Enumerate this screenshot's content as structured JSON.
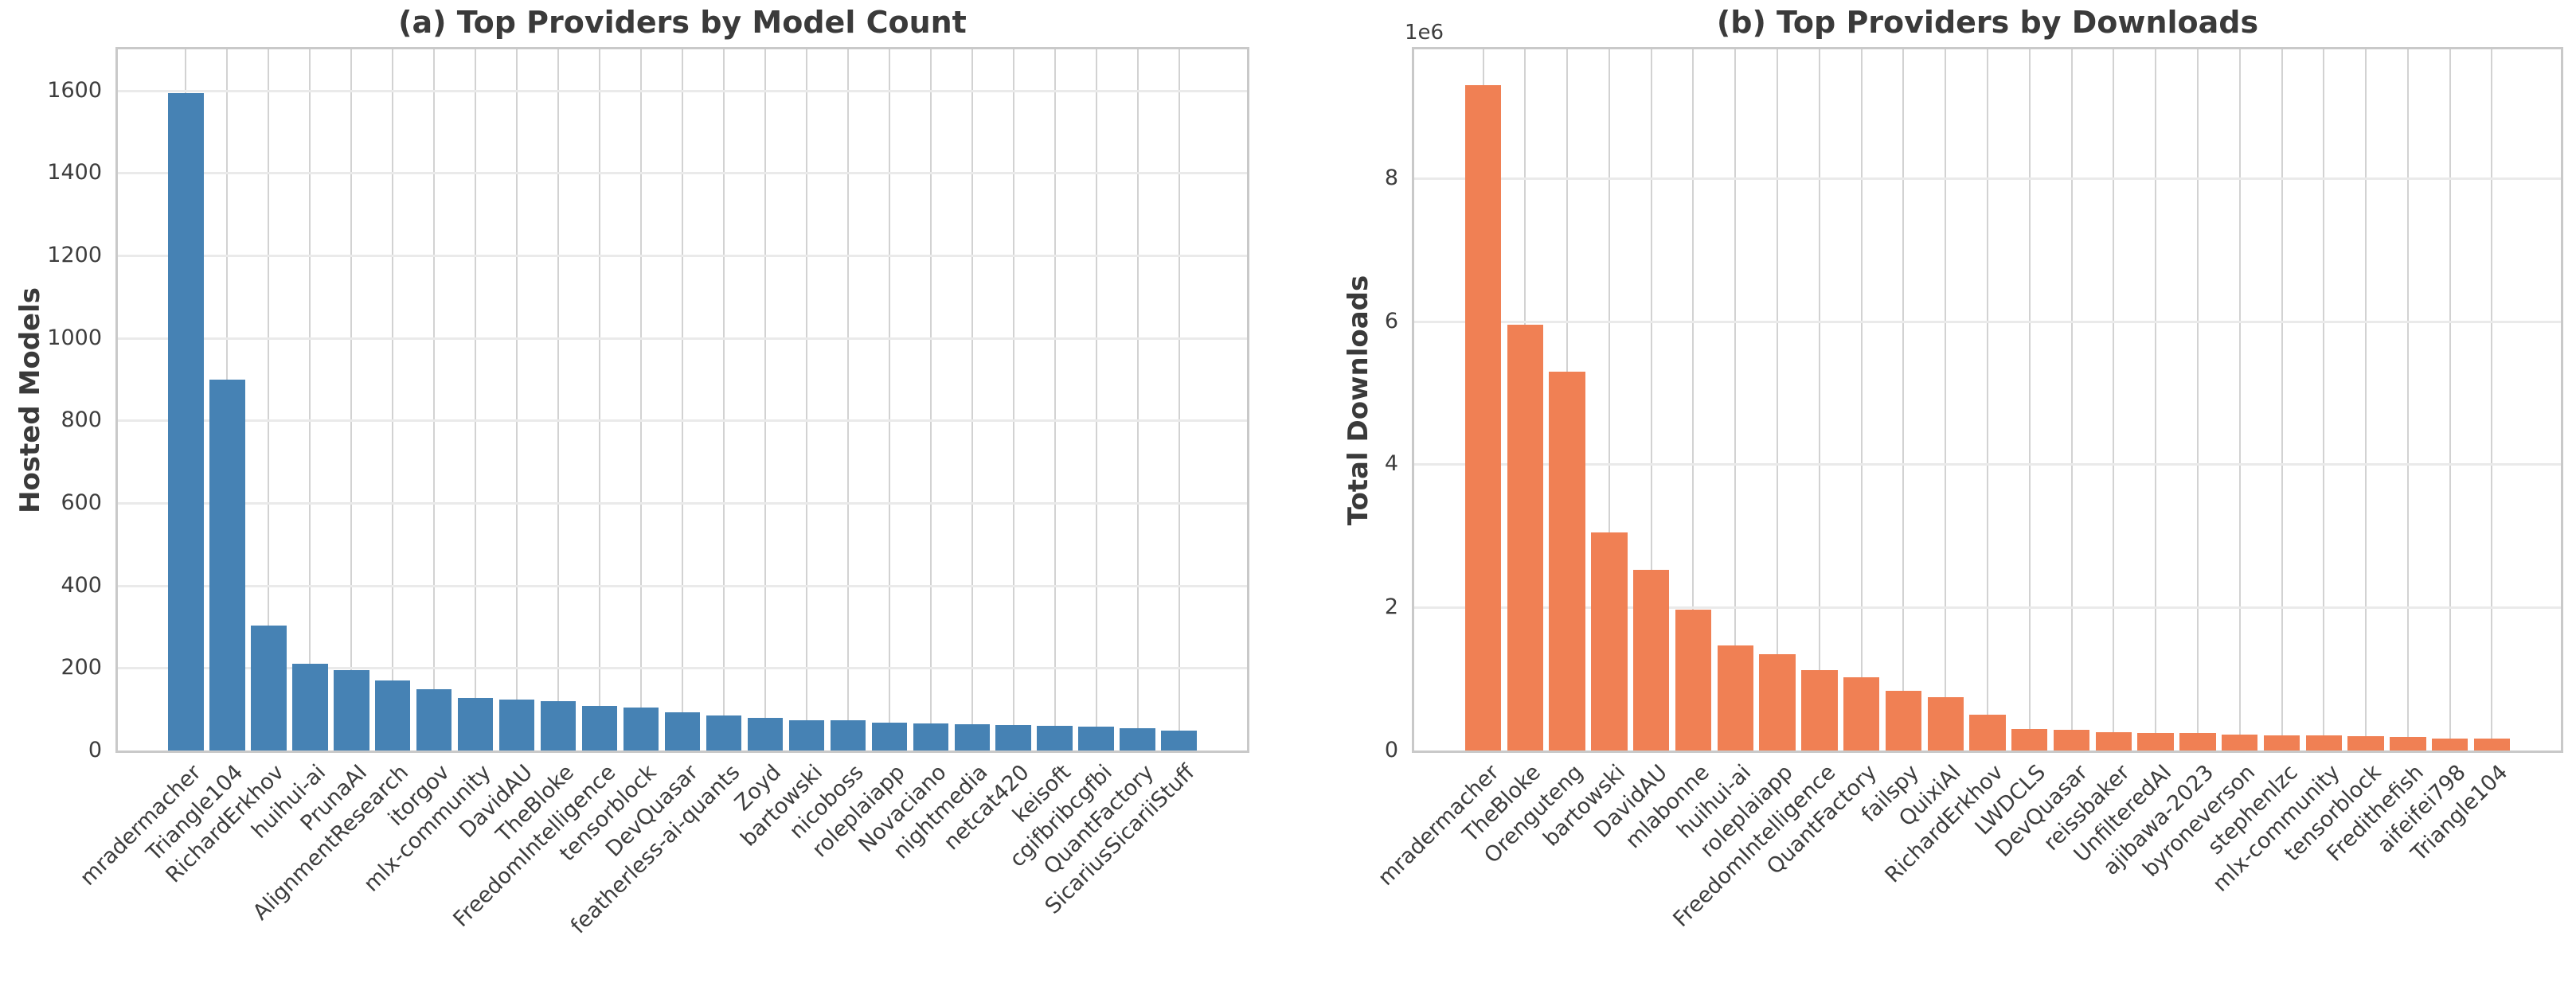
{
  "figure": {
    "background": "#ffffff",
    "text_color": "#3a3a3a",
    "grid_color_vertical": "#d2d2d2",
    "grid_color_horizontal": "#eaeaea"
  },
  "chart_data": [
    {
      "type": "bar",
      "title": "(a) Top Providers by Model Count",
      "xlabel": "",
      "ylabel": "Hosted Models",
      "bar_color": "#4682B4",
      "grid": true,
      "legend_position": "none",
      "ylim": [
        0,
        1700
      ],
      "yticks": [
        0,
        200,
        400,
        600,
        800,
        1000,
        1200,
        1400,
        1600
      ],
      "ytick_labels": [
        "0",
        "200",
        "400",
        "600",
        "800",
        "1000",
        "1200",
        "1400",
        "1600"
      ],
      "offset_label": "",
      "categories": [
        "mradermacher",
        "Triangle104",
        "RichardErkhov",
        "huihui-ai",
        "PrunaAI",
        "AlignmentResearch",
        "itorgov",
        "mlx-community",
        "DavidAU",
        "TheBloke",
        "FreedomIntelligence",
        "tensorblock",
        "DevQuasar",
        "featherless-ai-quants",
        "Zoyd",
        "bartowski",
        "nicoboss",
        "roleplaiapp",
        "Novaciano",
        "nightmedia",
        "netcat420",
        "keisoft",
        "cgifbribcgfbi",
        "QuantFactory",
        "SicariusSicariiStuff"
      ],
      "values": [
        1593,
        900,
        303,
        210,
        195,
        170,
        148,
        127,
        124,
        120,
        109,
        104,
        93,
        85,
        80,
        74,
        73,
        67,
        65,
        63,
        61,
        60,
        57,
        54,
        48
      ]
    },
    {
      "type": "bar",
      "title": "(b) Top Providers by Downloads",
      "xlabel": "",
      "ylabel": "Total Downloads",
      "bar_color": "#F08054",
      "grid": true,
      "legend_position": "none",
      "ylim": [
        0,
        9800000
      ],
      "yticks": [
        0,
        2000000,
        4000000,
        6000000,
        8000000
      ],
      "ytick_labels": [
        "0",
        "2",
        "4",
        "6",
        "8"
      ],
      "offset_label": "1e6",
      "categories": [
        "mradermacher",
        "TheBloke",
        "Orenguteng",
        "bartowski",
        "DavidAU",
        "mlabonne",
        "huihui-ai",
        "roleplaiapp",
        "FreedomIntelligence",
        "QuantFactory",
        "failspy",
        "QuixiAI",
        "RichardErkhov",
        "LWDCLS",
        "DevQuasar",
        "reissbaker",
        "UnfilteredAI",
        "ajibawa-2023",
        "byroneverson",
        "stephenlzc",
        "mlx-community",
        "tensorblock",
        "Fredithefish",
        "aifeifei798",
        "Triangle104"
      ],
      "values": [
        9300000,
        5950000,
        5300000,
        3050000,
        2520000,
        1970000,
        1470000,
        1350000,
        1120000,
        1020000,
        830000,
        750000,
        500000,
        300000,
        290000,
        260000,
        250000,
        250000,
        220000,
        210000,
        210000,
        200000,
        185000,
        172000,
        168000
      ]
    }
  ]
}
